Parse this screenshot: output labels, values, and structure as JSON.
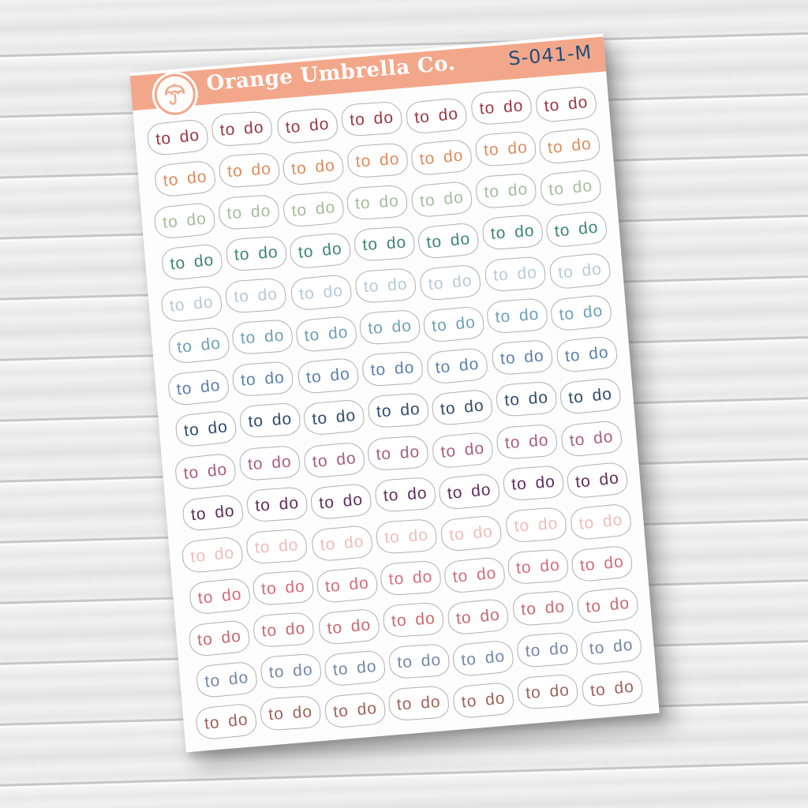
{
  "sheet": {
    "brand": "Orange Umbrella Co.",
    "product_code": "S-041-M",
    "band_color": "#F3A78A",
    "code_color": "#1E4E7C",
    "logo_icon": "umbrella-icon",
    "logo_icon_color": "#F3A78A",
    "sticker_label": "to do",
    "sticker_outline_color": "#b0b0b0",
    "columns": 7,
    "rows": [
      {
        "name": "burgundy",
        "color": "#9C3742"
      },
      {
        "name": "orange",
        "color": "#E08C5C"
      },
      {
        "name": "sage-green",
        "color": "#A2BF9B"
      },
      {
        "name": "teal",
        "color": "#3E8576"
      },
      {
        "name": "powder-blue",
        "color": "#B5CBD9"
      },
      {
        "name": "sky-blue",
        "color": "#6FA0BA"
      },
      {
        "name": "steel-blue",
        "color": "#5D80AE"
      },
      {
        "name": "navy",
        "color": "#2F4C6E"
      },
      {
        "name": "mauve",
        "color": "#AA5E80"
      },
      {
        "name": "plum",
        "color": "#5E2F5C"
      },
      {
        "name": "blush-pink",
        "color": "#F2BDB8"
      },
      {
        "name": "rose-pink",
        "color": "#D76C7C"
      },
      {
        "name": "dusty-red",
        "color": "#C96A6F"
      },
      {
        "name": "dusty-blue",
        "color": "#7389A8"
      },
      {
        "name": "brick-brown",
        "color": "#9F6459"
      }
    ]
  }
}
